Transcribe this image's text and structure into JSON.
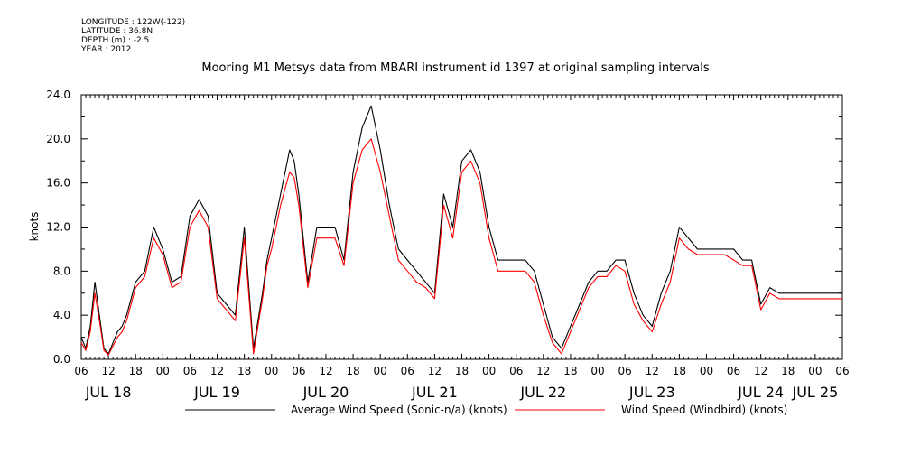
{
  "meta": {
    "longitude": "LONGITUDE : 122W(-122)",
    "latitude": "LATITUDE : 36.8N",
    "depth": "DEPTH (m) : -2.5",
    "year": "YEAR : 2012"
  },
  "chart_data": {
    "type": "line",
    "title": "Mooring M1 Metsys data from MBARI instrument id 1397 at original sampling intervals",
    "ylabel": "knots",
    "xlabel": "",
    "ylim": [
      0,
      24.0
    ],
    "y_ticks": [
      "0.0",
      "4.0",
      "8.0",
      "12.0",
      "16.0",
      "20.0",
      "24.0"
    ],
    "x_range_hours": [
      0,
      168
    ],
    "x_ticks": [
      "06",
      "12",
      "18",
      "00",
      "06",
      "12",
      "18",
      "00",
      "06",
      "12",
      "18",
      "00",
      "06",
      "12",
      "18",
      "00",
      "06",
      "12",
      "18",
      "00",
      "06",
      "12",
      "18",
      "00",
      "06",
      "12",
      "18",
      "00",
      "06"
    ],
    "date_labels": [
      "JUL 18",
      "JUL 19",
      "JUL 20",
      "JUL 21",
      "JUL 22",
      "JUL 23",
      "JUL 24",
      "JUL 25"
    ],
    "grid": false,
    "legend_position": "bottom",
    "series": [
      {
        "name": "Average Wind Speed (Sonic-n/a) (knots)",
        "color": "#000000",
        "x_hours": [
          0,
          1,
          2,
          3,
          4,
          5,
          6,
          7,
          8,
          9,
          10,
          12,
          14,
          16,
          18,
          20,
          22,
          24,
          26,
          28,
          30,
          32,
          34,
          36,
          38,
          40,
          41,
          42,
          43,
          44,
          45,
          46,
          47,
          48,
          50,
          52,
          54,
          56,
          58,
          60,
          62,
          64,
          66,
          68,
          70,
          72,
          74,
          76,
          78,
          80,
          82,
          84,
          86,
          88,
          90,
          92,
          94,
          96,
          98,
          100,
          102,
          104,
          106,
          108,
          110,
          112,
          114,
          116,
          118,
          120,
          122,
          124,
          126,
          128,
          130,
          132,
          134,
          136,
          138,
          140,
          142,
          144,
          146,
          148,
          150,
          152,
          154,
          156,
          158,
          160,
          162,
          164,
          166,
          168
        ],
        "values": [
          2.0,
          1.0,
          3.0,
          7.0,
          4.0,
          1.0,
          0.5,
          1.5,
          2.5,
          3.0,
          4.0,
          7.0,
          8.0,
          12.0,
          10.0,
          7.0,
          7.5,
          13.0,
          14.5,
          13.0,
          6.0,
          5.0,
          4.0,
          12.0,
          1.0,
          6.0,
          9.0,
          11.0,
          13.0,
          15.0,
          17.0,
          19.0,
          18.0,
          15.0,
          7.0,
          12.0,
          12.0,
          12.0,
          9.0,
          17.0,
          21.0,
          23.0,
          19.0,
          14.0,
          10.0,
          9.0,
          8.0,
          7.0,
          6.0,
          15.0,
          12.0,
          18.0,
          19.0,
          17.0,
          12.0,
          9.0,
          9.0,
          9.0,
          9.0,
          8.0,
          5.0,
          2.0,
          1.0,
          3.0,
          5.0,
          7.0,
          8.0,
          8.0,
          9.0,
          9.0,
          6.0,
          4.0,
          3.0,
          6.0,
          8.0,
          12.0,
          11.0,
          10.0,
          10.0,
          10.0,
          10.0,
          10.0,
          9.0,
          9.0,
          5.0,
          6.5,
          6.0,
          6.0,
          6.0,
          6.0,
          6.0,
          6.0,
          6.0,
          6.0
        ]
      },
      {
        "name": "Wind Speed (Windbird) (knots)",
        "color": "#ff0000",
        "x_hours": [
          0,
          1,
          2,
          3,
          4,
          5,
          6,
          7,
          8,
          9,
          10,
          12,
          14,
          16,
          18,
          20,
          22,
          24,
          26,
          28,
          30,
          32,
          34,
          36,
          38,
          40,
          41,
          42,
          43,
          44,
          45,
          46,
          47,
          48,
          50,
          52,
          54,
          56,
          58,
          60,
          62,
          64,
          66,
          68,
          70,
          72,
          74,
          76,
          78,
          80,
          82,
          84,
          86,
          88,
          90,
          92,
          94,
          96,
          98,
          100,
          102,
          104,
          106,
          108,
          110,
          112,
          114,
          116,
          118,
          120,
          122,
          124,
          126,
          128,
          130,
          132,
          134,
          136,
          138,
          140,
          142,
          144,
          146,
          148,
          150,
          152,
          154,
          156,
          158,
          160,
          162,
          164,
          166,
          168
        ],
        "values": [
          1.5,
          0.8,
          2.5,
          6.0,
          3.5,
          0.8,
          0.4,
          1.2,
          2.0,
          2.5,
          3.5,
          6.5,
          7.5,
          11.0,
          9.5,
          6.5,
          7.0,
          12.0,
          13.5,
          12.0,
          5.5,
          4.5,
          3.5,
          11.0,
          0.5,
          5.5,
          8.5,
          10.0,
          12.0,
          14.0,
          15.5,
          17.0,
          16.5,
          14.0,
          6.5,
          11.0,
          11.0,
          11.0,
          8.5,
          16.0,
          19.0,
          20.0,
          17.0,
          13.0,
          9.0,
          8.0,
          7.0,
          6.5,
          5.5,
          14.0,
          11.0,
          17.0,
          18.0,
          16.0,
          11.0,
          8.0,
          8.0,
          8.0,
          8.0,
          7.0,
          4.0,
          1.5,
          0.5,
          2.5,
          4.5,
          6.5,
          7.5,
          7.5,
          8.5,
          8.0,
          5.0,
          3.5,
          2.5,
          5.0,
          7.0,
          11.0,
          10.0,
          9.5,
          9.5,
          9.5,
          9.5,
          9.0,
          8.5,
          8.5,
          4.5,
          6.0,
          5.5,
          5.5,
          5.5,
          5.5,
          5.5,
          5.5,
          5.5,
          5.5
        ]
      }
    ]
  }
}
